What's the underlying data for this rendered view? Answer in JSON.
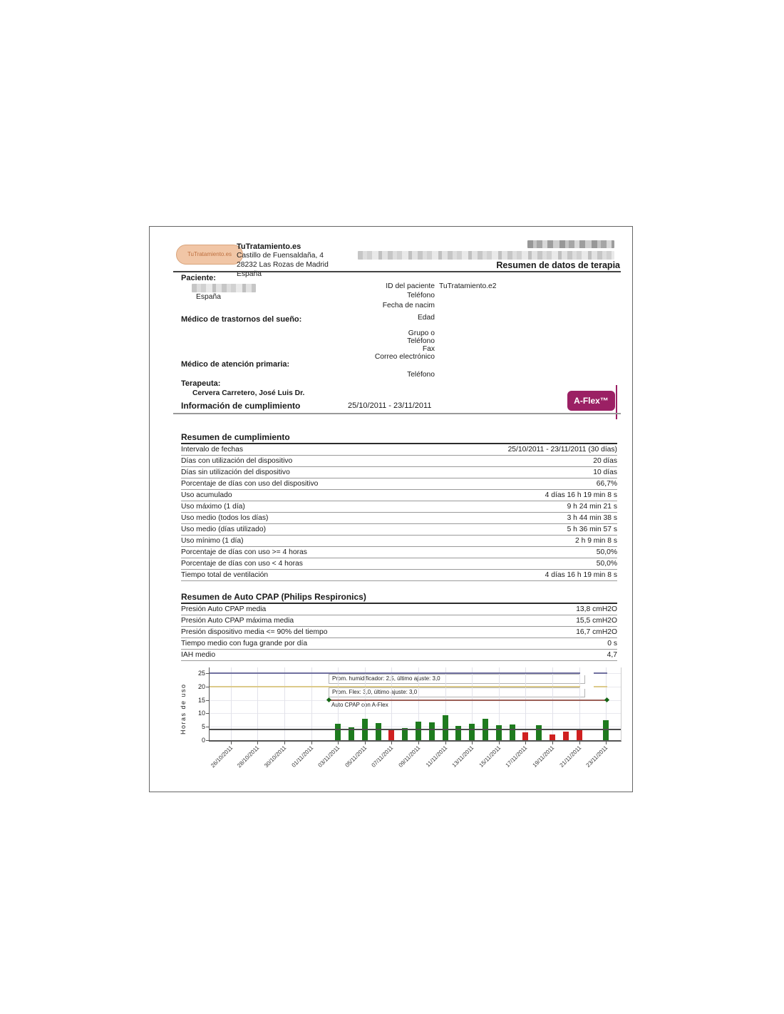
{
  "page": {
    "header": {
      "logo_text": "TuTratamiento.es",
      "company_name": "TuTratamiento.es",
      "address_line1": "Castillo de Fuensaldaña, 4",
      "address_line2": "28232 Las Rozas de Madrid",
      "address_line3": "España",
      "report_title": "Resumen de datos de terapia"
    },
    "patient": {
      "section_label": "Paciente:",
      "country": "España",
      "id_label": "ID del paciente",
      "id_value": "TuTratamiento.e2",
      "phone_label": "Teléfono",
      "birth_label": "Fecha de nacim",
      "age_label": "Edad"
    },
    "sleep_doctor": {
      "section_label": "Médico de trastornos del sueño:",
      "group_label": "Grupo o",
      "phone_label": "Teléfono",
      "fax_label": "Fax",
      "email_label": "Correo electrónico"
    },
    "primary_doctor": {
      "section_label": "Médico de atención primaria:",
      "phone_label": "Teléfono"
    },
    "therapist": {
      "section_label": "Terapeuta:",
      "name": "Cervera Carretero, José Luis Dr."
    },
    "compliance_info": {
      "label": "Información de cumplimiento",
      "date_range": "25/10/2011 - 23/11/2011",
      "badge": "A-Flex™"
    },
    "compliance_summary": {
      "title": "Resumen de cumplimiento",
      "rows": [
        [
          "Intervalo de fechas",
          "25/10/2011 - 23/11/2011 (30 días)"
        ],
        [
          "Días con utilización del dispositivo",
          "20 días"
        ],
        [
          "Días sin utilización del dispositivo",
          "10 días"
        ],
        [
          "Porcentaje de días con uso del dispositivo",
          "66,7%"
        ],
        [
          "Uso acumulado",
          "4 días 16 h 19 min 8 s"
        ],
        [
          "Uso máximo (1 día)",
          "9 h 24 min 21 s"
        ],
        [
          "Uso medio (todos los días)",
          "3 h 44 min 38 s"
        ],
        [
          "Uso medio (días utilizado)",
          "5 h 36 min 57 s"
        ],
        [
          "Uso mínimo (1 día)",
          "2 h 9 min 8 s"
        ],
        [
          "Porcentaje de días con uso >= 4 horas",
          "50,0%"
        ],
        [
          "Porcentaje de días con uso < 4 horas",
          "50,0%"
        ],
        [
          "Tiempo total de ventilación",
          "4 días 16 h 19 min 8 s"
        ]
      ]
    },
    "cpap_summary": {
      "title": "Resumen de Auto CPAP (Philips Respironics)",
      "rows": [
        [
          "Presión Auto CPAP media",
          "13,8 cmH2O"
        ],
        [
          "Presión Auto CPAP máxima media",
          "15,5 cmH2O"
        ],
        [
          "Presión dispositivo media <= 90% del tiempo",
          "16,7 cmH2O"
        ],
        [
          "Tiempo medio con fuga grande por día",
          "0 s"
        ],
        [
          "IAH medio",
          "4,7"
        ]
      ]
    }
  },
  "chart_data": {
    "type": "bar",
    "title": "",
    "xlabel": "",
    "ylabel": "Horas de uso",
    "ylim": [
      0,
      27
    ],
    "yticks": [
      0,
      5,
      10,
      15,
      20,
      25
    ],
    "grid": true,
    "threshold_hours": 4,
    "bar_color_ok": "#1e7b1e",
    "bar_color_low": "#cf2020",
    "x_tick_labels": [
      "26/10/2011",
      "28/10/2011",
      "30/10/2011",
      "01/11/2011",
      "03/11/2011",
      "05/11/2011",
      "07/11/2011",
      "09/11/2011",
      "11/11/2011",
      "13/11/2011",
      "15/11/2011",
      "17/11/2011",
      "19/11/2011",
      "21/11/2011",
      "23/11/2011"
    ],
    "ref_lines": [
      {
        "label": "Prom. humidificador: 2,5, último ajuste: 3,0",
        "value": 25,
        "color": "#70709f"
      },
      {
        "label": "Prom. Flex: 3,0, último ajuste: 3,0",
        "value": 20,
        "color": "#dcca8a"
      },
      {
        "label": "Auto CPAP con A-Flex",
        "value": 15,
        "color": "#9c6057",
        "marker": "diamond"
      }
    ],
    "days": [
      {
        "date": "25/10/2011",
        "hours": 0
      },
      {
        "date": "26/10/2011",
        "hours": 0
      },
      {
        "date": "27/10/2011",
        "hours": 0
      },
      {
        "date": "28/10/2011",
        "hours": 0
      },
      {
        "date": "29/10/2011",
        "hours": 0
      },
      {
        "date": "30/10/2011",
        "hours": 0
      },
      {
        "date": "31/10/2011",
        "hours": 0
      },
      {
        "date": "01/11/2011",
        "hours": 0
      },
      {
        "date": "02/11/2011",
        "hours": 0
      },
      {
        "date": "03/11/2011",
        "hours": 6.1
      },
      {
        "date": "04/11/2011",
        "hours": 4.7
      },
      {
        "date": "05/11/2011",
        "hours": 8.1
      },
      {
        "date": "06/11/2011",
        "hours": 6.4
      },
      {
        "date": "07/11/2011",
        "hours": 3.9
      },
      {
        "date": "08/11/2011",
        "hours": 4.5
      },
      {
        "date": "09/11/2011",
        "hours": 6.9
      },
      {
        "date": "10/11/2011",
        "hours": 6.7
      },
      {
        "date": "11/11/2011",
        "hours": 9.4
      },
      {
        "date": "12/11/2011",
        "hours": 5.2
      },
      {
        "date": "13/11/2011",
        "hours": 6.1
      },
      {
        "date": "14/11/2011",
        "hours": 8.1
      },
      {
        "date": "15/11/2011",
        "hours": 5.5
      },
      {
        "date": "16/11/2011",
        "hours": 5.8
      },
      {
        "date": "17/11/2011",
        "hours": 2.9
      },
      {
        "date": "18/11/2011",
        "hours": 5.5
      },
      {
        "date": "19/11/2011",
        "hours": 2.1
      },
      {
        "date": "20/11/2011",
        "hours": 3.1
      },
      {
        "date": "21/11/2011",
        "hours": 3.9
      },
      {
        "date": "22/11/2011",
        "hours": 0
      },
      {
        "date": "23/11/2011",
        "hours": 7.5
      }
    ]
  }
}
